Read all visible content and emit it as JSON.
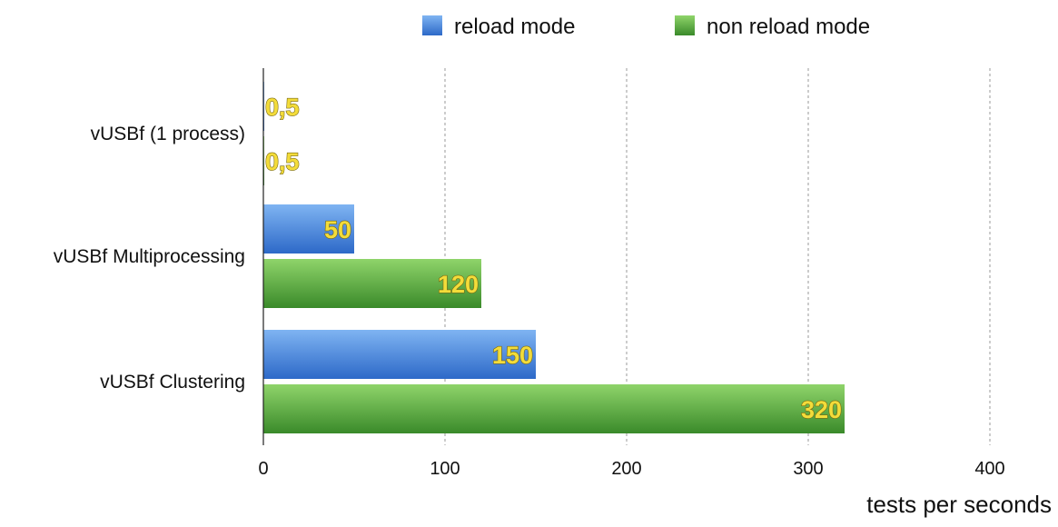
{
  "chart_data": {
    "type": "bar",
    "orientation": "horizontal",
    "categories": [
      "vUSBf (1 process)",
      "vUSBf Multiprocessing",
      "vUSBf Clustering"
    ],
    "series": [
      {
        "name": "reload mode",
        "values": [
          0.5,
          50,
          150
        ],
        "labels": [
          "0,5",
          "50",
          "150"
        ],
        "color": "#3f7fd8"
      },
      {
        "name": "non reload mode",
        "values": [
          0.5,
          120,
          320
        ],
        "labels": [
          "0,5",
          "120",
          "320"
        ],
        "color": "#4fa83a"
      }
    ],
    "xlabel": "tests per seconds",
    "ylabel": "",
    "xlim": [
      0,
      400
    ],
    "xticks": [
      0,
      100,
      200,
      300,
      400
    ],
    "grid": "vertical dashed",
    "legend": "top-center"
  },
  "colors": {
    "reload_top": "#7fb4f2",
    "reload_bottom": "#2d69c8",
    "nonreload_top": "#8fd46a",
    "nonreload_bottom": "#3a8a2a",
    "data_label": "#f3dc3a"
  }
}
